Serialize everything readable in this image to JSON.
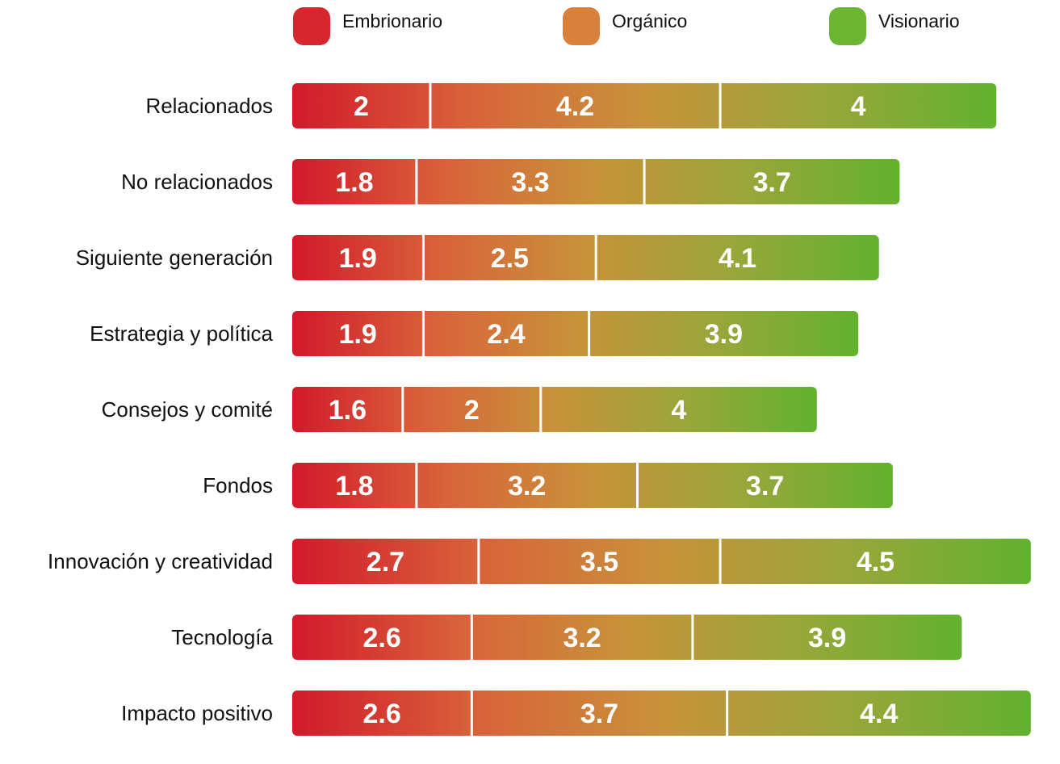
{
  "chart_data": {
    "type": "bar",
    "orientation": "horizontal",
    "stacked": true,
    "title": "",
    "xlabel": "",
    "ylabel": "",
    "grid": false,
    "legend_position": "top",
    "categories": [
      "Relacionados",
      "No relacionados",
      "Siguiente generación",
      "Estrategia y política",
      "Consejos y comité",
      "Fondos",
      "Innovación y creatividad",
      "Tecnología",
      "Impacto positivo"
    ],
    "series": [
      {
        "name": "Embrionario",
        "color": "#d7262d",
        "values": [
          2,
          1.8,
          1.9,
          1.9,
          1.6,
          1.8,
          2.7,
          2.6,
          2.6
        ]
      },
      {
        "name": "Orgánico",
        "color": "#d9803a",
        "values": [
          4.2,
          3.3,
          2.5,
          2.4,
          2,
          3.2,
          3.5,
          3.2,
          3.7
        ]
      },
      {
        "name": "Visionario",
        "color": "#6bb532",
        "values": [
          4,
          3.7,
          4.1,
          3.9,
          4,
          3.7,
          4.5,
          3.9,
          4.4
        ]
      }
    ],
    "gradient_stops": [
      "#d2192b",
      "#d9623a",
      "#c8923a",
      "#99a63a",
      "#62b22e"
    ]
  }
}
